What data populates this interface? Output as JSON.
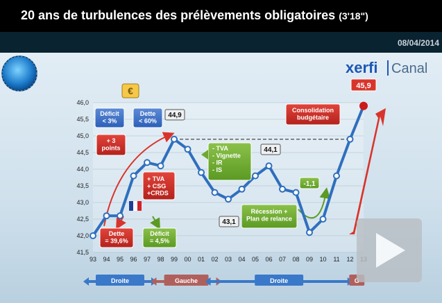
{
  "header": {
    "title": "20 ans de turbulences des prélèvements obligatoires",
    "duration": "(3'18\")",
    "date": "08/04/2014"
  },
  "logo": {
    "brand": "xerfi",
    "channel": "Canal"
  },
  "chart_data": {
    "type": "line",
    "x": [
      "93",
      "94",
      "95",
      "96",
      "97",
      "98",
      "99",
      "00",
      "01",
      "02",
      "03",
      "04",
      "05",
      "06",
      "07",
      "08",
      "09",
      "10",
      "11",
      "12",
      "13"
    ],
    "values": [
      42.0,
      42.6,
      42.6,
      43.8,
      44.2,
      44.1,
      44.9,
      44.6,
      43.9,
      43.3,
      43.1,
      43.4,
      43.8,
      44.1,
      43.4,
      43.3,
      42.1,
      42.5,
      43.8,
      44.9,
      45.9
    ],
    "ylim": [
      41.5,
      46.0
    ],
    "yticks": [
      "41,5",
      "42,0",
      "42,5",
      "43,0",
      "43,5",
      "44,0",
      "44,5",
      "45,0",
      "45,5",
      "46,0"
    ],
    "reference_line": 44.9,
    "colors": {
      "line": "#2f6fbd",
      "marker_fill": "#ffffff",
      "end_marker": "#cc1a1a",
      "arrow": "#d9342b"
    },
    "annotations": {
      "deficit_top": "Déficit\n< 3%",
      "dette_top": "Dette\n< 60%",
      "euro": "€",
      "plus3": "+ 3\npoints",
      "v449": "44,9",
      "taxes_green": "- TVA\n- Vignette\n- IR\n- IS",
      "v441": "44,1",
      "taxes_red": "+ TVA\n+ CSG\n+CRDS",
      "dette396": "Dette\n= 39,6%",
      "deficit45": "Déficit\n= 4,5%",
      "v431": "43,1",
      "recession": "Récession +\nPlan de relance",
      "minus11": "-1,1",
      "consolidation": "Consolidation\nbudgétaire",
      "v459": "45,9"
    },
    "periods": [
      {
        "label": "Droite",
        "color": "#3a78c9"
      },
      {
        "label": "Gauche",
        "color": "#b0605c"
      },
      {
        "label": "Droite",
        "color": "#3a78c9"
      },
      {
        "label": "G",
        "color": "#b0605c"
      }
    ]
  }
}
